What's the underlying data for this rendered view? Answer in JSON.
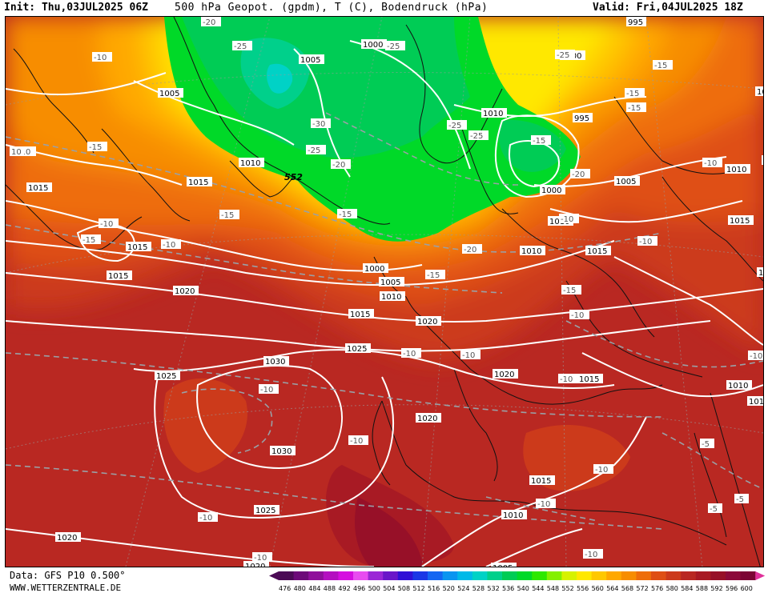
{
  "header": {
    "init": "Init: Thu,03JUL2025 06Z",
    "title": "500 hPa Geopot. (gpdm), T (C), Bodendruck (hPa)",
    "valid": "Valid: Fri,04JUL2025 18Z"
  },
  "footer": {
    "source": "Data: GFS P10 0.500°",
    "site": "WWW.WETTERZENTRALE.DE"
  },
  "colorbar": {
    "labels": [
      "476",
      "480",
      "484",
      "488",
      "492",
      "496",
      "500",
      "504",
      "508",
      "512",
      "516",
      "520",
      "524",
      "528",
      "532",
      "536",
      "540",
      "544",
      "548",
      "552",
      "556",
      "560",
      "564",
      "568",
      "572",
      "576",
      "580",
      "584",
      "588",
      "592",
      "596",
      "600"
    ],
    "colors": [
      "#4b0b55",
      "#6d0a79",
      "#8f0f9b",
      "#b40fc0",
      "#d50ee0",
      "#e84cf0",
      "#9b27d6",
      "#6a16c9",
      "#3010d6",
      "#1a37e6",
      "#1466f2",
      "#0a95f0",
      "#00b9e8",
      "#00d2c6",
      "#00d08b",
      "#00cc55",
      "#00d928",
      "#2ee800",
      "#84f000",
      "#d6f200",
      "#ffe800",
      "#ffc800",
      "#ffa800",
      "#f78d00",
      "#ee6d0a",
      "#df4f14",
      "#cc3a1b",
      "#b92822",
      "#a81a24",
      "#971028",
      "#8c0a3a",
      "#7c0534"
    ]
  },
  "map": {
    "geopotential_label": "552",
    "isobar_labels": [
      {
        "text": "1000"
      },
      {
        "text": "1005"
      },
      {
        "text": "1005"
      },
      {
        "text": "1010"
      },
      {
        "text": "1010"
      },
      {
        "text": "1015"
      },
      {
        "text": "1015"
      },
      {
        "text": "1015"
      },
      {
        "text": "1020"
      },
      {
        "text": "1000"
      },
      {
        "text": "1005"
      },
      {
        "text": "1010"
      },
      {
        "text": "1015"
      },
      {
        "text": "1020"
      },
      {
        "text": "1025"
      },
      {
        "text": "1025"
      },
      {
        "text": "1030"
      },
      {
        "text": "1030"
      },
      {
        "text": "1025"
      },
      {
        "text": "1020"
      },
      {
        "text": "1020"
      },
      {
        "text": "1010"
      },
      {
        "text": "995"
      },
      {
        "text": "1000"
      },
      {
        "text": "1000"
      },
      {
        "text": "1005"
      },
      {
        "text": "1010"
      },
      {
        "text": "1015"
      },
      {
        "text": "1010"
      },
      {
        "text": "1015"
      },
      {
        "text": "1015"
      },
      {
        "text": "1010"
      },
      {
        "text": "1015"
      },
      {
        "text": "1010"
      },
      {
        "text": "1005"
      },
      {
        "text": "1020"
      },
      {
        "text": "1020"
      },
      {
        "text": "1010"
      },
      {
        "text": "1010"
      },
      {
        "text": "1015"
      },
      {
        "text": "1010"
      },
      {
        "text": "995"
      },
      {
        "text": "1000"
      }
    ],
    "temp_labels": [
      {
        "text": "-20"
      },
      {
        "text": "-25"
      },
      {
        "text": "-25"
      },
      {
        "text": "-10"
      },
      {
        "text": "-15"
      },
      {
        "text": "-15"
      },
      {
        "text": "-10"
      },
      {
        "text": "-15"
      },
      {
        "text": "-30"
      },
      {
        "text": "-25"
      },
      {
        "text": "-20"
      },
      {
        "text": "-15"
      },
      {
        "text": "-25"
      },
      {
        "text": "-25"
      },
      {
        "text": "-15"
      },
      {
        "text": "-20"
      },
      {
        "text": "-25"
      },
      {
        "text": "-20"
      },
      {
        "text": "-15"
      },
      {
        "text": "-15"
      },
      {
        "text": "-10"
      },
      {
        "text": "-10"
      },
      {
        "text": "-10"
      },
      {
        "text": "-10"
      },
      {
        "text": "-10"
      },
      {
        "text": "-15"
      },
      {
        "text": "-10"
      },
      {
        "text": "-10"
      },
      {
        "text": "-10"
      },
      {
        "text": "-10"
      },
      {
        "text": "-10"
      },
      {
        "text": "-10"
      },
      {
        "text": "-5"
      },
      {
        "text": "-5"
      },
      {
        "text": "-5"
      },
      {
        "text": "-10"
      },
      {
        "text": "-10"
      },
      {
        "text": "-10"
      },
      {
        "text": "-10"
      },
      {
        "text": "-15"
      },
      {
        "text": "-10"
      },
      {
        "text": "-10"
      },
      {
        "text": "-15"
      },
      {
        "text": "10"
      }
    ]
  }
}
